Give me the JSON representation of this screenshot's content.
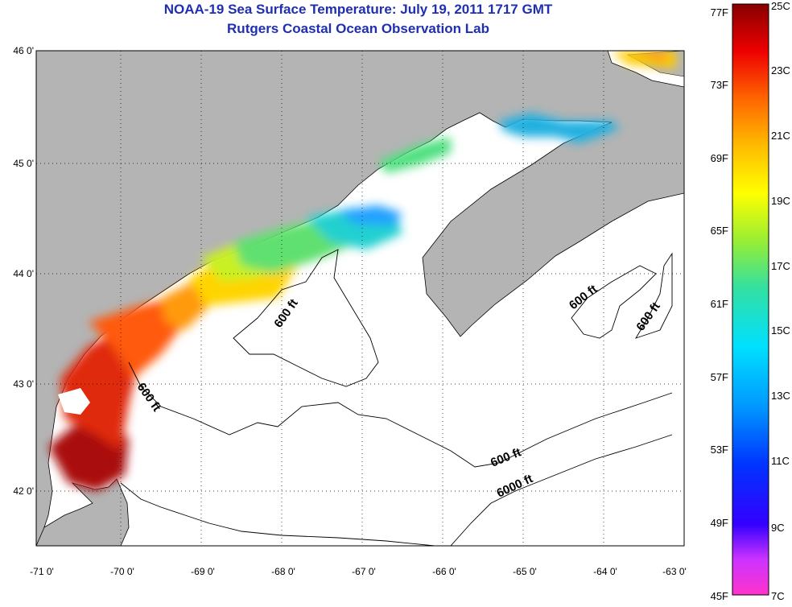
{
  "title": "NOAA-19 Sea Surface Temperature:  July 19, 2011 1717 GMT",
  "subtitle": "Rutgers Coastal Ocean Observation Lab",
  "map": {
    "lat_labels": [
      "46 0'",
      "45 0'",
      "44 0'",
      "43 0'",
      "42 0'"
    ],
    "lon_labels": [
      "-71 0'",
      "-70 0'",
      "-69 0'",
      "-68 0'",
      "-67 0'",
      "-66 0'",
      "-65 0'",
      "-64 0'",
      "-63 0'"
    ],
    "land_color": "#b4b4b4",
    "contour_labels": [
      "600 ft",
      "600 ft",
      "600 ft",
      "600 ft",
      "600 ft",
      "6000 ft"
    ]
  },
  "colorbar": {
    "f_labels": [
      "77F",
      "73F",
      "69F",
      "65F",
      "61F",
      "57F",
      "53F",
      "49F",
      "45F"
    ],
    "c_labels": [
      "25C",
      "23C",
      "21C",
      "19C",
      "17C",
      "15C",
      "13C",
      "11C",
      "9C",
      "7C"
    ]
  }
}
